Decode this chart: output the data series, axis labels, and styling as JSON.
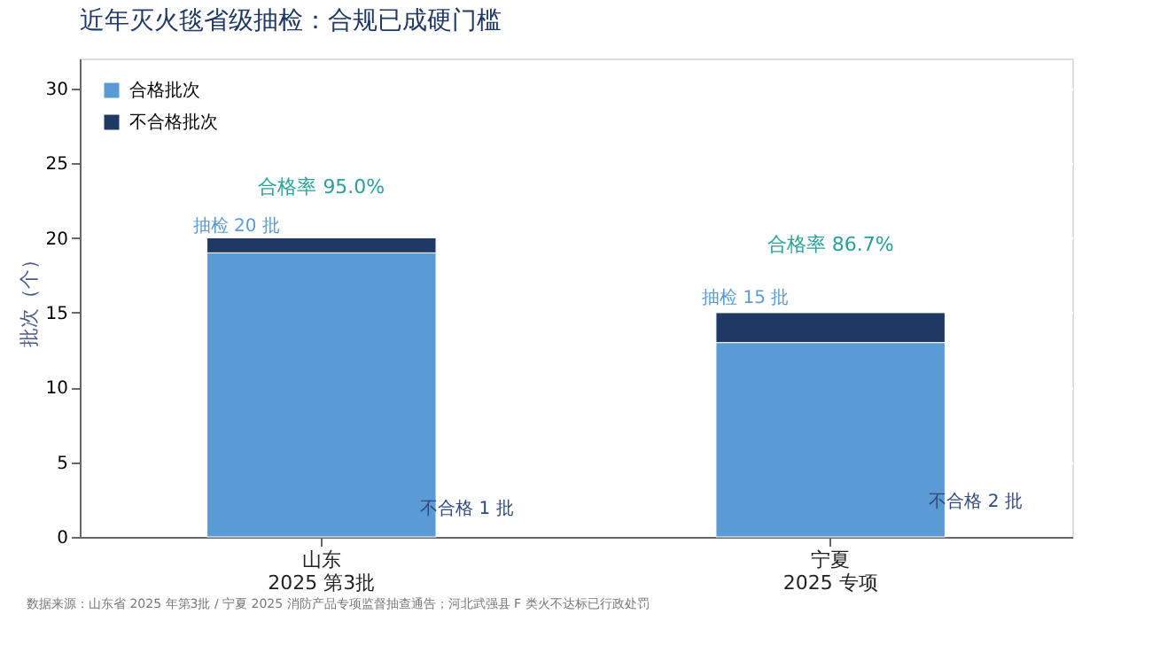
{
  "chart_data": {
    "type": "bar",
    "title": "近年灭火毯省级抽检：合规已成硬门槛",
    "ylabel": "批次（个）",
    "categories": [
      "山东\n2025 第3批",
      "宁夏\n2025 专项"
    ],
    "series": [
      {
        "name": "合格批次",
        "color": "#5b9bd5",
        "values": [
          19,
          13
        ]
      },
      {
        "name": "不合格批次",
        "color": "#1f3864",
        "values": [
          1,
          2
        ]
      }
    ],
    "stacked": true,
    "ylim": [
      0,
      32
    ],
    "yticks": [
      0,
      5,
      10,
      15,
      20,
      25,
      30
    ],
    "grid": "y",
    "legend": "top left",
    "annotations": [
      "合格率 95.0%",
      "抽检 20 批",
      "不合格 1 批",
      "合格率 86.7%",
      "抽检 15 批",
      "不合格 2 批",
      "数据来源：山东省 2025 年第3批 / 宁夏 2025 消防产品专项监督抽查通告；河北武强县 F 类火不达标已行政处罚"
    ]
  }
}
